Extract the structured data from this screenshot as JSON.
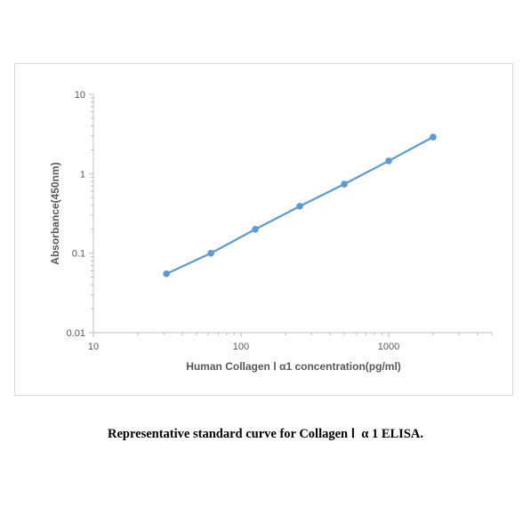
{
  "chart_data": {
    "type": "line",
    "title": "",
    "xlabel": "Human Collagen Ⅰ α1 concentration(pg/ml)",
    "ylabel": "Absorbance(450nm)",
    "x_scale": "log",
    "y_scale": "log",
    "xlim": [
      10,
      5000
    ],
    "ylim": [
      0.01,
      10
    ],
    "x_ticks": [
      "10",
      "100",
      "1000"
    ],
    "y_ticks": [
      "0.01",
      "0.1",
      "1",
      "10"
    ],
    "grid": false,
    "series": [
      {
        "x": [
          31.25,
          62.5,
          125,
          250,
          500,
          1000,
          2000
        ],
        "y": [
          0.055,
          0.1,
          0.2,
          0.39,
          0.74,
          1.45,
          2.9
        ]
      }
    ],
    "colors": {
      "line": "#5b9bd5",
      "axis": "#bfbfbf"
    }
  },
  "caption": "Representative standard curve for Collagen Ⅰ  α 1 ELISA."
}
